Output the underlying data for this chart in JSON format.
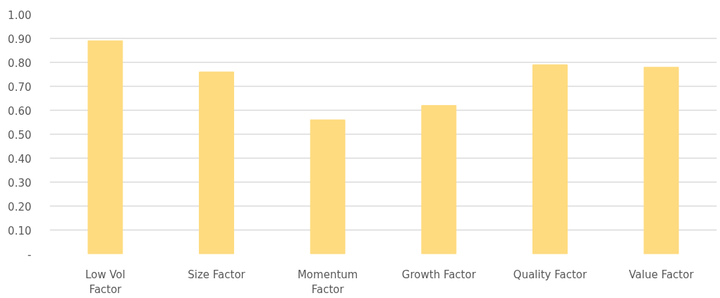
{
  "chart_data": {
    "type": "bar",
    "categories": [
      "Low Vol\nFactor",
      "Size Factor",
      "Momentum\nFactor",
      "Growth Factor",
      "Quality Factor",
      "Value Factor"
    ],
    "values": [
      0.89,
      0.76,
      0.56,
      0.62,
      0.79,
      0.78
    ],
    "color": "#fedb7f",
    "ylim": [
      0,
      1.0
    ],
    "yticks": [
      {
        "value": 0,
        "label": "-"
      },
      {
        "value": 0.1,
        "label": "0.10"
      },
      {
        "value": 0.2,
        "label": "0.20"
      },
      {
        "value": 0.3,
        "label": "0.30"
      },
      {
        "value": 0.4,
        "label": "0.40"
      },
      {
        "value": 0.5,
        "label": "0.50"
      },
      {
        "value": 0.6,
        "label": "0.60"
      },
      {
        "value": 0.7,
        "label": "0.70"
      },
      {
        "value": 0.8,
        "label": "0.80"
      },
      {
        "value": 0.9,
        "label": "0.90"
      },
      {
        "value": 1.0,
        "label": "1.00"
      }
    ],
    "grid": "y"
  }
}
